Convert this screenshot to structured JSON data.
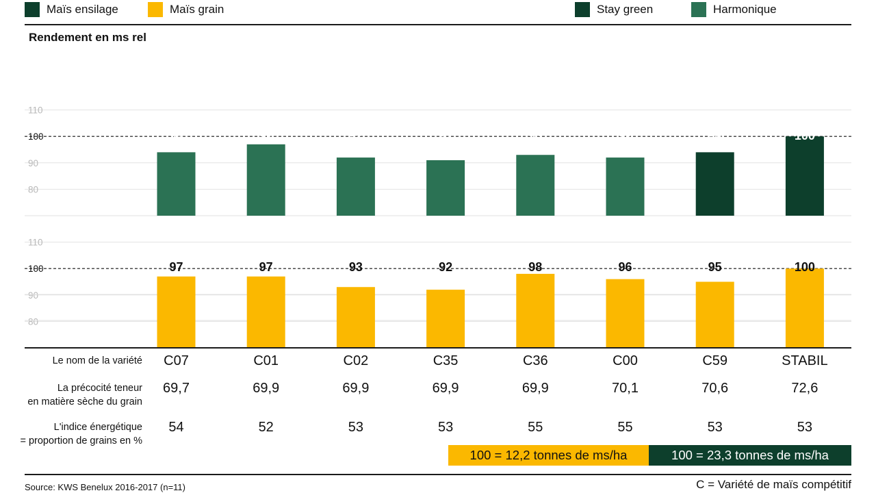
{
  "legend": {
    "ensilage": {
      "label": "Maïs ensilage",
      "color": "#0d3f2c"
    },
    "grain": {
      "label": "Maïs grain",
      "color": "#fbb800"
    },
    "stay_green": {
      "label": "Stay green",
      "color": "#0d3f2c"
    },
    "harmonique": {
      "label": "Harmonique",
      "color": "#2b7254"
    }
  },
  "chart_data": {
    "type": "bar",
    "title": "Rendement en ms rel",
    "categories": [
      "C07",
      "C01",
      "C02",
      "C35",
      "C36",
      "C00",
      "C59",
      "STABIL"
    ],
    "series": [
      {
        "name": "Maïs ensilage",
        "values": [
          94,
          97,
          92,
          91,
          93,
          92,
          94,
          100
        ],
        "colors": [
          "#2b7254",
          "#2b7254",
          "#2b7254",
          "#2b7254",
          "#2b7254",
          "#2b7254",
          "#0d3f2c",
          "#0d3f2c"
        ]
      },
      {
        "name": "Maïs grain",
        "values": [
          97,
          97,
          93,
          92,
          98,
          96,
          95,
          100
        ],
        "color": "#fbb800"
      }
    ],
    "upper_ticks": [
      "110",
      "100",
      "90",
      "80"
    ],
    "lower_ticks": [
      "110",
      "100",
      "90",
      "80"
    ],
    "reference_line": 100,
    "ylim": [
      70,
      110
    ]
  },
  "table": {
    "rows": [
      {
        "label": "Le nom de la variété",
        "values": [
          "C07",
          "C01",
          "C02",
          "C35",
          "C36",
          "C00",
          "C59",
          "STABIL"
        ]
      },
      {
        "label": "La précocité teneur\nen matière sèche du grain",
        "values": [
          "69,7",
          "69,9",
          "69,9",
          "69,9",
          "69,9",
          "70,1",
          "70,6",
          "72,6"
        ]
      },
      {
        "label": "L'indice énergétique\n= proportion de grains en %",
        "values": [
          "54",
          "52",
          "53",
          "53",
          "55",
          "55",
          "53",
          "53"
        ]
      }
    ]
  },
  "reference_boxes": {
    "grain": {
      "label": "100 = 12,2 tonnes de ms/ha",
      "color": "#fbb800"
    },
    "ensilage": {
      "label": "100 = 23,3 tonnes de ms/ha",
      "color": "#0d3f2c"
    }
  },
  "footer": {
    "source": "Source: KWS Benelux 2016-2017 (n=11)",
    "note": "C = Variété de maïs compétitif"
  }
}
